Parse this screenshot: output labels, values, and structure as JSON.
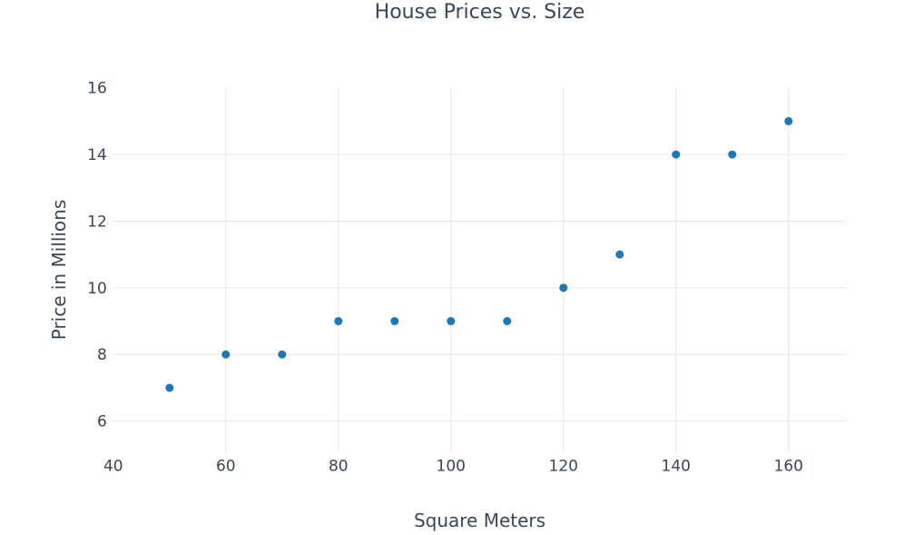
{
  "chart_data": {
    "type": "scatter",
    "title": "House Prices vs. Size",
    "xlabel": "Square Meters",
    "ylabel": "Price in Millions",
    "x": [
      50,
      60,
      70,
      80,
      90,
      100,
      110,
      120,
      130,
      140,
      150,
      160
    ],
    "y": [
      7,
      8,
      8,
      9,
      9,
      9,
      9,
      10,
      11,
      14,
      14,
      15
    ],
    "xticks": [
      40,
      60,
      80,
      100,
      120,
      140,
      160
    ],
    "yticks": [
      6,
      8,
      10,
      12,
      14,
      16
    ],
    "xlim": [
      40,
      170.2
    ],
    "ylim": [
      5.08,
      16
    ],
    "grid": true,
    "legend_position": "none",
    "marker_color": "#1f77b4",
    "marker_radius": 4.5,
    "grid_color": "#e6e6e6",
    "text_color": "#3a4757",
    "background_color": "#ffffff"
  }
}
